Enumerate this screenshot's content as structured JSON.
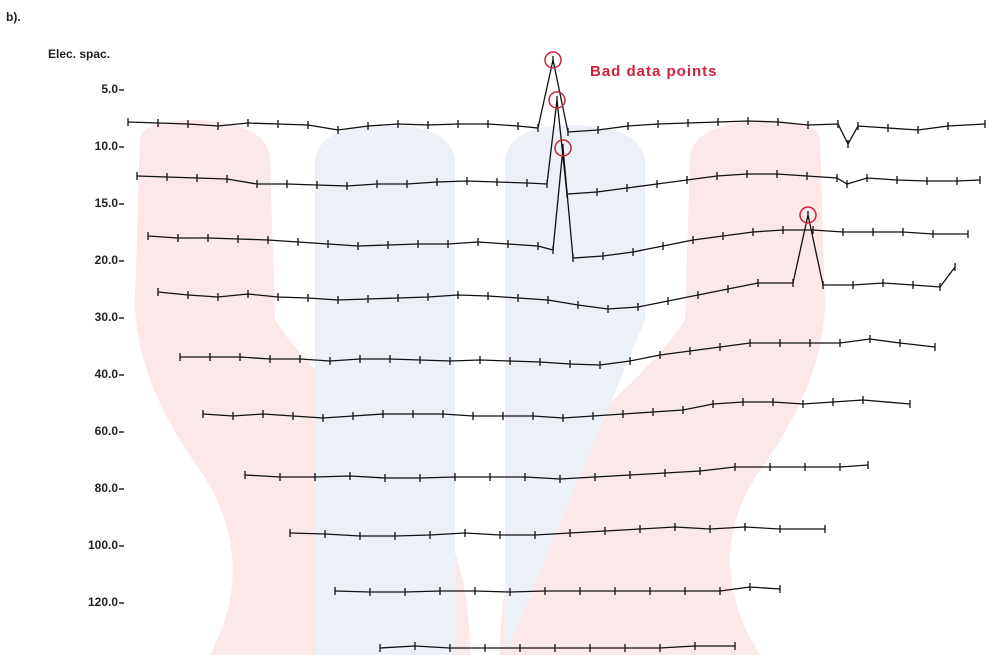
{
  "chart_data": {
    "type": "line",
    "panel_label": "b).",
    "ylabel": "Elec. spac.",
    "annotation": "Bad data points",
    "categories": [
      "5.0",
      "10.0",
      "15.0",
      "20.0",
      "30.0",
      "40.0",
      "60.0",
      "80.0",
      "100.0",
      "120.0",
      null
    ],
    "xlim": [
      0,
      988
    ],
    "color": "#111111",
    "highlight_color": "#d0203c",
    "bad_points": [
      [
        0,
        15
      ],
      [
        1,
        15
      ],
      [
        2,
        15
      ],
      [
        3,
        22
      ]
    ],
    "series": [
      {
        "x": [
          128,
          158,
          188,
          218,
          248,
          278,
          308,
          338,
          368,
          398,
          428,
          458,
          488,
          518,
          538,
          553,
          568,
          598,
          628,
          658,
          688,
          718,
          748,
          778,
          808,
          838,
          848,
          858,
          888,
          918,
          948,
          985
        ],
        "values": [
          2,
          1,
          0,
          -2,
          1,
          0,
          -1,
          -6,
          -2,
          0,
          -1,
          0,
          0,
          -2,
          -4,
          64,
          -8,
          -6,
          -2,
          0,
          1,
          2,
          3,
          2,
          -1,
          0,
          -20,
          -2,
          -4,
          -6,
          -2,
          0
        ]
      },
      {
        "x": [
          137,
          167,
          197,
          227,
          257,
          287,
          317,
          347,
          377,
          407,
          437,
          467,
          497,
          527,
          547,
          557,
          567,
          597,
          627,
          657,
          687,
          717,
          747,
          777,
          807,
          837,
          847,
          867,
          897,
          927,
          957,
          980
        ],
        "values": [
          2,
          1,
          0,
          -1,
          -6,
          -6,
          -7,
          -8,
          -6,
          -6,
          -4,
          -3,
          -4,
          -5,
          -6,
          78,
          -16,
          -14,
          -10,
          -6,
          -2,
          2,
          4,
          4,
          2,
          0,
          -6,
          0,
          -2,
          -3,
          -3,
          -2
        ]
      },
      {
        "x": [
          148,
          178,
          208,
          238,
          268,
          298,
          328,
          358,
          388,
          418,
          448,
          478,
          508,
          538,
          553,
          563,
          573,
          603,
          633,
          663,
          693,
          723,
          753,
          783,
          813,
          843,
          873,
          903,
          933,
          968
        ],
        "values": [
          0,
          -2,
          -2,
          -3,
          -4,
          -6,
          -8,
          -10,
          -9,
          -8,
          -8,
          -6,
          -8,
          -10,
          -14,
          88,
          -22,
          -20,
          -16,
          -10,
          -4,
          0,
          4,
          6,
          6,
          4,
          4,
          4,
          2,
          2
        ]
      },
      {
        "x": [
          158,
          188,
          218,
          248,
          278,
          308,
          338,
          368,
          398,
          428,
          458,
          488,
          518,
          548,
          578,
          608,
          638,
          668,
          698,
          728,
          758,
          793,
          808,
          823,
          853,
          883,
          913,
          940,
          955
        ],
        "values": [
          5,
          2,
          0,
          3,
          0,
          -1,
          -3,
          -2,
          -1,
          0,
          2,
          1,
          -1,
          -3,
          -8,
          -12,
          -10,
          -4,
          2,
          8,
          14,
          14,
          82,
          12,
          12,
          14,
          12,
          10,
          30
        ]
      },
      {
        "x": [
          180,
          210,
          240,
          270,
          300,
          330,
          360,
          390,
          420,
          450,
          480,
          510,
          540,
          570,
          600,
          630,
          660,
          690,
          720,
          750,
          780,
          810,
          840,
          870,
          900,
          935
        ],
        "values": [
          0,
          0,
          0,
          -2,
          -2,
          -4,
          -2,
          -2,
          -3,
          -4,
          -3,
          -4,
          -5,
          -7,
          -8,
          -4,
          2,
          6,
          10,
          14,
          14,
          14,
          14,
          18,
          14,
          10
        ]
      },
      {
        "x": [
          203,
          233,
          263,
          293,
          323,
          353,
          383,
          413,
          443,
          473,
          503,
          533,
          563,
          593,
          623,
          653,
          683,
          713,
          743,
          773,
          803,
          833,
          863,
          910
        ],
        "values": [
          0,
          -2,
          0,
          -2,
          -4,
          -2,
          0,
          0,
          0,
          -2,
          -2,
          -2,
          -4,
          -2,
          0,
          2,
          4,
          10,
          12,
          12,
          10,
          12,
          14,
          10
        ]
      },
      {
        "x": [
          245,
          280,
          315,
          350,
          385,
          420,
          455,
          490,
          525,
          560,
          595,
          630,
          665,
          700,
          735,
          770,
          805,
          840,
          868
        ],
        "values": [
          0,
          -2,
          -2,
          -1,
          -3,
          -3,
          -2,
          -2,
          -2,
          -4,
          -2,
          0,
          2,
          4,
          8,
          8,
          8,
          8,
          10
        ]
      },
      {
        "x": [
          290,
          325,
          360,
          395,
          430,
          465,
          500,
          535,
          570,
          605,
          640,
          675,
          710,
          745,
          780,
          825
        ],
        "values": [
          0,
          -1,
          -3,
          -3,
          -2,
          0,
          -2,
          -2,
          0,
          2,
          4,
          6,
          4,
          6,
          4,
          4
        ]
      },
      {
        "x": [
          335,
          370,
          405,
          440,
          475,
          510,
          545,
          580,
          615,
          650,
          685,
          720,
          750,
          780
        ],
        "values": [
          0,
          -1,
          -1,
          0,
          0,
          -1,
          0,
          0,
          0,
          0,
          0,
          0,
          4,
          2
        ]
      },
      {
        "x": [
          380,
          415,
          450,
          485,
          520,
          555,
          590,
          625,
          660,
          695,
          735
        ],
        "values": [
          0,
          2,
          0,
          0,
          0,
          0,
          0,
          0,
          0,
          2,
          2
        ]
      }
    ]
  }
}
